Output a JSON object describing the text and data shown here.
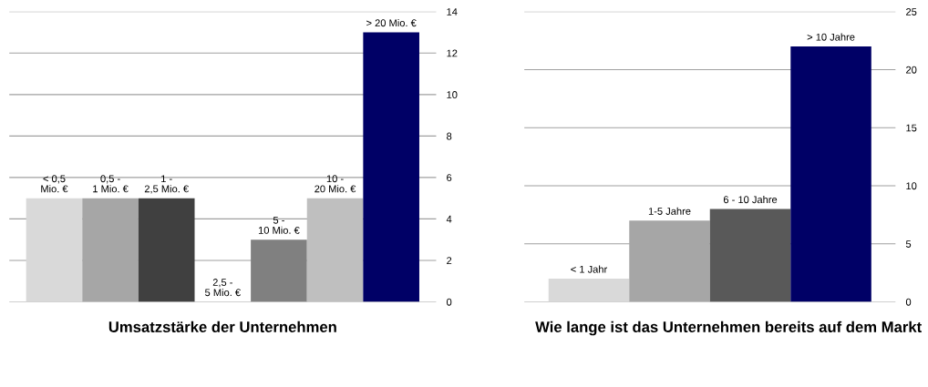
{
  "chart_data": [
    {
      "type": "bar",
      "title": "Umsatzstärke der Unternehmen",
      "categories": [
        "< 0,5\nMio. €",
        "0,5 -\n1 Mio. €",
        "1 -\n2,5 Mio. €",
        "2,5 -\n5 Mio. €",
        "5 -\n10 Mio. €",
        "10 -\n20 Mio. €",
        "> 20 Mio. €"
      ],
      "values": [
        5,
        5,
        5,
        0,
        3,
        5,
        13
      ],
      "colors": [
        "#d9d9d9",
        "#a6a6a6",
        "#404040",
        "#595959",
        "#808080",
        "#bfbfbf",
        "#000066"
      ],
      "ylim": [
        0,
        14
      ],
      "yticks": [
        0,
        2,
        4,
        6,
        8,
        10,
        12,
        14
      ],
      "grid": "y",
      "legend": false
    },
    {
      "type": "bar",
      "title": "Wie lange ist das Unternehmen bereits auf dem Markt",
      "categories": [
        "< 1 Jahr",
        "1-5 Jahre",
        "6 - 10 Jahre",
        "> 10 Jahre"
      ],
      "values": [
        2,
        7,
        8,
        22
      ],
      "colors": [
        "#d9d9d9",
        "#a6a6a6",
        "#595959",
        "#000066"
      ],
      "ylim": [
        0,
        25
      ],
      "yticks": [
        0,
        5,
        10,
        15,
        20,
        25
      ],
      "grid": "y",
      "legend": false
    }
  ]
}
